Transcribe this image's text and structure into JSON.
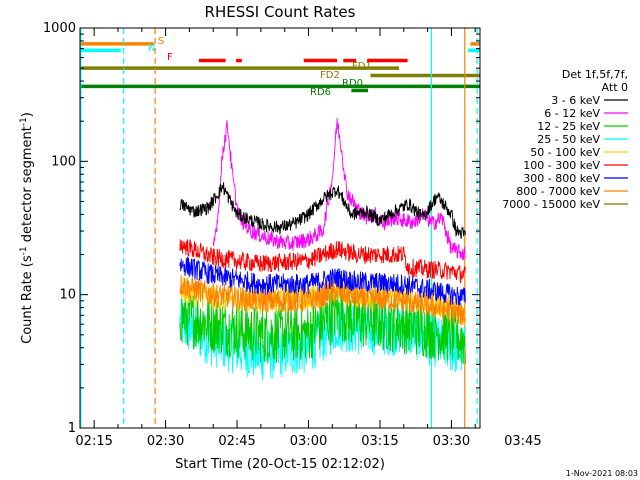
{
  "chart_data": {
    "type": "line",
    "title": "RHESSI Count Rates",
    "xlabel": "Start Time (20-Oct-15 02:12:02)",
    "ylabel": "Count Rate (s⁻¹ detector segment⁻¹)",
    "ylabel_parts": [
      "Count Rate (s",
      "-1",
      " detector segment",
      "-1",
      ")"
    ],
    "yscale": "log",
    "ylim": [
      1,
      1000
    ],
    "ytick_values": [
      1,
      10,
      100,
      1000
    ],
    "ytick_labels": [
      "1",
      "10",
      "100",
      "1000"
    ],
    "xlim_min": [
      132.03,
      216
    ],
    "xtick_min": [
      135,
      150,
      165,
      180,
      195,
      210,
      225
    ],
    "xtick_labels": [
      "02:15",
      "02:30",
      "02:45",
      "03:00",
      "03:15",
      "03:30",
      "03:45"
    ],
    "footer_date": "1-Nov-2021 08:03",
    "legend_header": [
      "Det 1f,5f,7f,",
      "Att 0"
    ],
    "series": [
      {
        "name": "3 - 6 keV",
        "color": "#000000",
        "x": [
          153,
          156,
          159,
          162,
          165,
          168,
          171,
          174,
          177,
          180,
          183,
          186,
          189,
          192,
          195,
          198,
          201,
          204,
          207,
          210,
          211,
          213
        ],
        "y": [
          48,
          42,
          45,
          65,
          40,
          36,
          33,
          32,
          34,
          40,
          52,
          62,
          40,
          42,
          36,
          42,
          48,
          38,
          55,
          40,
          30,
          28
        ]
      },
      {
        "name": "6 - 12 keV",
        "color": "#ff00ff",
        "x": [
          160,
          161,
          162,
          163,
          164,
          165,
          166,
          168,
          170,
          172,
          174,
          176,
          180,
          183,
          185,
          186,
          187,
          188,
          190,
          192,
          194,
          196,
          198,
          200,
          202,
          204,
          206,
          208,
          210,
          213
        ],
        "y": [
          22,
          40,
          120,
          190,
          80,
          45,
          36,
          30,
          28,
          26,
          25,
          24,
          26,
          30,
          75,
          200,
          120,
          60,
          45,
          38,
          40,
          34,
          38,
          36,
          35,
          40,
          34,
          38,
          22,
          20
        ]
      },
      {
        "name": "12 - 25 keV",
        "color": "#00cc00",
        "x": [
          153,
          160,
          170,
          180,
          186,
          190,
          200,
          210,
          213
        ],
        "y": [
          7.0,
          6.0,
          5.0,
          5.2,
          7.5,
          6.5,
          6.0,
          5.0,
          4.5
        ]
      },
      {
        "name": "25 - 50 keV",
        "color": "#00ffff",
        "x": [
          153,
          160,
          170,
          180,
          186,
          190,
          200,
          210,
          213
        ],
        "y": [
          6.0,
          4.5,
          3.5,
          4.0,
          6.0,
          5.5,
          5.5,
          4.0,
          3.8
        ]
      },
      {
        "name": "50 - 100 keV",
        "color": "#ffcc00",
        "x": [
          153,
          160,
          170,
          180,
          186,
          190,
          200,
          210,
          213
        ],
        "y": [
          11,
          9.5,
          9,
          9.5,
          11,
          10,
          9.5,
          8,
          7
        ]
      },
      {
        "name": "100 - 300 keV",
        "color": "#ff0000",
        "x": [
          153,
          160,
          170,
          180,
          186,
          190,
          200,
          201,
          210,
          213
        ],
        "y": [
          24,
          19,
          17,
          18,
          22,
          20,
          20,
          16,
          15,
          14
        ]
      },
      {
        "name": "300 - 800 keV",
        "color": "#0000ff",
        "x": [
          153,
          160,
          170,
          180,
          186,
          190,
          200,
          210,
          213
        ],
        "y": [
          17,
          14,
          12,
          12,
          13.5,
          12.5,
          12,
          10,
          9.5
        ]
      },
      {
        "name": "800 - 7000 keV",
        "color": "#ff8000",
        "x": [
          153,
          160,
          170,
          180,
          186,
          190,
          200,
          210,
          213
        ],
        "y": [
          12,
          10,
          9,
          9,
          10.5,
          9.5,
          9,
          7.5,
          7
        ]
      },
      {
        "name": "7000 - 15000 keV",
        "color": "#8b7500",
        "x": [],
        "y": []
      }
    ],
    "flags": [
      {
        "label": "S",
        "color": "#ff8000",
        "y": 760,
        "segments": [
          [
            132.03,
            147.5
          ],
          [
            214,
            216
          ]
        ]
      },
      {
        "label": "N",
        "color": "#00ffff",
        "y": 680,
        "segments": [
          [
            132.03,
            140.6
          ],
          [
            213.5,
            216
          ]
        ]
      },
      {
        "label": "F",
        "color": "#ff0000",
        "y": 570,
        "segments": [
          [
            157,
            162.6
          ],
          [
            164.8,
            166
          ],
          [
            179,
            186
          ],
          [
            187.3,
            190
          ],
          [
            192.3,
            200.8
          ]
        ]
      },
      {
        "label": "FD1",
        "color": "#808000",
        "y": 500,
        "segments": [
          [
            132.03,
            199
          ]
        ]
      },
      {
        "label": "FD2",
        "color": "#808000",
        "y": 440,
        "segments": [
          [
            193,
            216
          ]
        ]
      },
      {
        "label": "RD0",
        "color": "#008000",
        "y": 365,
        "segments": [
          [
            132.03,
            216
          ]
        ]
      },
      {
        "label": "RD6",
        "color": "#008000",
        "y": 340,
        "segments": [
          [
            189,
            192.5
          ]
        ]
      }
    ],
    "vlines": [
      {
        "x": 132.2,
        "color": "#00ffff",
        "style": "solid"
      },
      {
        "x": 141.2,
        "color": "#00ffff",
        "style": "dashed"
      },
      {
        "x": 147.8,
        "color": "#ff8000",
        "style": "dashed"
      },
      {
        "x": 205.8,
        "color": "#00ffff",
        "style": "solid"
      },
      {
        "x": 212.8,
        "color": "#ff8000",
        "style": "solid"
      },
      {
        "x": 215.4,
        "color": "#00ffff",
        "style": "dashed"
      }
    ]
  }
}
